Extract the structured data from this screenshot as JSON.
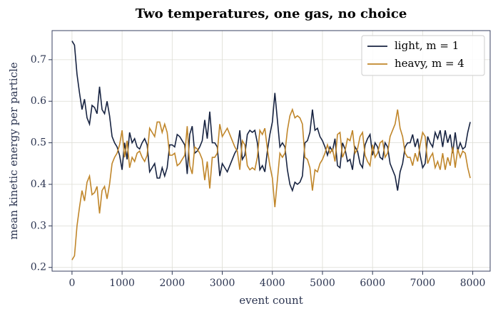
{
  "chart_data": {
    "type": "line",
    "title": "Two temperatures, one gas, no choice",
    "xlabel": "event count",
    "ylabel": "mean kinetic energy per particle",
    "x": [
      0,
      50,
      100,
      150,
      200,
      250,
      300,
      350,
      400,
      450,
      500,
      550,
      600,
      650,
      700,
      750,
      800,
      850,
      900,
      950,
      1000,
      1050,
      1100,
      1150,
      1200,
      1250,
      1300,
      1350,
      1400,
      1450,
      1500,
      1550,
      1600,
      1650,
      1700,
      1750,
      1800,
      1850,
      1900,
      1950,
      2000,
      2050,
      2100,
      2150,
      2200,
      2250,
      2300,
      2350,
      2400,
      2450,
      2500,
      2550,
      2600,
      2650,
      2700,
      2750,
      2800,
      2850,
      2900,
      2950,
      3000,
      3050,
      3100,
      3150,
      3200,
      3250,
      3300,
      3350,
      3400,
      3450,
      3500,
      3550,
      3600,
      3650,
      3700,
      3750,
      3800,
      3850,
      3900,
      3950,
      4000,
      4050,
      4100,
      4150,
      4200,
      4250,
      4300,
      4350,
      4400,
      4450,
      4500,
      4550,
      4600,
      4650,
      4700,
      4750,
      4800,
      4850,
      4900,
      4950,
      5000,
      5050,
      5100,
      5150,
      5200,
      5250,
      5300,
      5350,
      5400,
      5450,
      5500,
      5550,
      5600,
      5650,
      5700,
      5750,
      5800,
      5850,
      5900,
      5950,
      6000,
      6050,
      6100,
      6150,
      6200,
      6250,
      6300,
      6350,
      6400,
      6450,
      6500,
      6550,
      6600,
      6650,
      6700,
      6750,
      6800,
      6850,
      6900,
      6950,
      7000,
      7050,
      7100,
      7150,
      7200,
      7250,
      7300,
      7350,
      7400,
      7450,
      7500,
      7550,
      7600,
      7650,
      7700,
      7750,
      7800,
      7850,
      7900,
      7950
    ],
    "series": [
      {
        "name": "light, m = 1",
        "color": "#172341",
        "values": [
          0.745,
          0.735,
          0.665,
          0.62,
          0.58,
          0.605,
          0.56,
          0.545,
          0.59,
          0.585,
          0.57,
          0.635,
          0.58,
          0.57,
          0.6,
          0.565,
          0.515,
          0.5,
          0.49,
          0.47,
          0.435,
          0.5,
          0.46,
          0.525,
          0.5,
          0.51,
          0.49,
          0.485,
          0.5,
          0.51,
          0.495,
          0.43,
          0.44,
          0.45,
          0.415,
          0.415,
          0.44,
          0.42,
          0.44,
          0.495,
          0.495,
          0.49,
          0.52,
          0.515,
          0.505,
          0.495,
          0.425,
          0.52,
          0.54,
          0.475,
          0.48,
          0.49,
          0.505,
          0.555,
          0.51,
          0.575,
          0.5,
          0.5,
          0.49,
          0.42,
          0.45,
          0.44,
          0.43,
          0.445,
          0.46,
          0.475,
          0.485,
          0.53,
          0.46,
          0.47,
          0.52,
          0.53,
          0.525,
          0.53,
          0.5,
          0.435,
          0.445,
          0.43,
          0.48,
          0.52,
          0.55,
          0.62,
          0.555,
          0.49,
          0.5,
          0.49,
          0.435,
          0.4,
          0.385,
          0.405,
          0.4,
          0.405,
          0.42,
          0.5,
          0.505,
          0.525,
          0.58,
          0.53,
          0.535,
          0.515,
          0.505,
          0.49,
          0.47,
          0.49,
          0.48,
          0.51,
          0.445,
          0.44,
          0.5,
          0.485,
          0.455,
          0.46,
          0.435,
          0.49,
          0.48,
          0.45,
          0.44,
          0.495,
          0.51,
          0.52,
          0.47,
          0.5,
          0.49,
          0.465,
          0.46,
          0.5,
          0.49,
          0.45,
          0.435,
          0.42,
          0.385,
          0.43,
          0.45,
          0.49,
          0.5,
          0.5,
          0.52,
          0.49,
          0.51,
          0.47,
          0.44,
          0.45,
          0.515,
          0.5,
          0.49,
          0.525,
          0.51,
          0.53,
          0.49,
          0.53,
          0.5,
          0.52,
          0.475,
          0.525,
          0.48,
          0.5,
          0.485,
          0.49,
          0.525,
          0.55
        ]
      },
      {
        "name": "heavy, m = 4",
        "color": "#c0862a",
        "values": [
          0.218,
          0.228,
          0.3,
          0.345,
          0.385,
          0.36,
          0.405,
          0.42,
          0.375,
          0.38,
          0.395,
          0.33,
          0.385,
          0.395,
          0.365,
          0.4,
          0.45,
          0.465,
          0.475,
          0.495,
          0.53,
          0.465,
          0.505,
          0.44,
          0.465,
          0.455,
          0.475,
          0.48,
          0.465,
          0.455,
          0.47,
          0.535,
          0.525,
          0.515,
          0.55,
          0.55,
          0.525,
          0.545,
          0.525,
          0.47,
          0.47,
          0.475,
          0.445,
          0.45,
          0.46,
          0.47,
          0.54,
          0.445,
          0.425,
          0.49,
          0.485,
          0.475,
          0.46,
          0.41,
          0.455,
          0.39,
          0.465,
          0.465,
          0.475,
          0.545,
          0.515,
          0.525,
          0.535,
          0.52,
          0.505,
          0.49,
          0.48,
          0.435,
          0.505,
          0.495,
          0.445,
          0.435,
          0.44,
          0.435,
          0.465,
          0.53,
          0.52,
          0.535,
          0.485,
          0.445,
          0.415,
          0.345,
          0.41,
          0.475,
          0.465,
          0.475,
          0.53,
          0.565,
          0.58,
          0.56,
          0.565,
          0.56,
          0.545,
          0.465,
          0.46,
          0.44,
          0.385,
          0.435,
          0.43,
          0.45,
          0.46,
          0.475,
          0.495,
          0.475,
          0.485,
          0.455,
          0.52,
          0.525,
          0.465,
          0.48,
          0.51,
          0.505,
          0.53,
          0.475,
          0.485,
          0.515,
          0.525,
          0.47,
          0.455,
          0.445,
          0.495,
          0.465,
          0.475,
          0.5,
          0.505,
          0.465,
          0.475,
          0.515,
          0.53,
          0.545,
          0.58,
          0.535,
          0.515,
          0.475,
          0.465,
          0.465,
          0.445,
          0.475,
          0.455,
          0.495,
          0.525,
          0.515,
          0.45,
          0.465,
          0.475,
          0.44,
          0.455,
          0.435,
          0.475,
          0.435,
          0.465,
          0.445,
          0.49,
          0.44,
          0.485,
          0.465,
          0.48,
          0.475,
          0.44,
          0.415
        ]
      }
    ],
    "xlim": [
      -397.5,
      8347.5
    ],
    "ylim": [
      0.191,
      0.77
    ],
    "xticks": [
      0,
      1000,
      2000,
      3000,
      4000,
      5000,
      6000,
      7000,
      8000
    ],
    "yticks": [
      0.2,
      0.3,
      0.4,
      0.5,
      0.6,
      0.7
    ],
    "grid": true,
    "legend": "upper right"
  }
}
